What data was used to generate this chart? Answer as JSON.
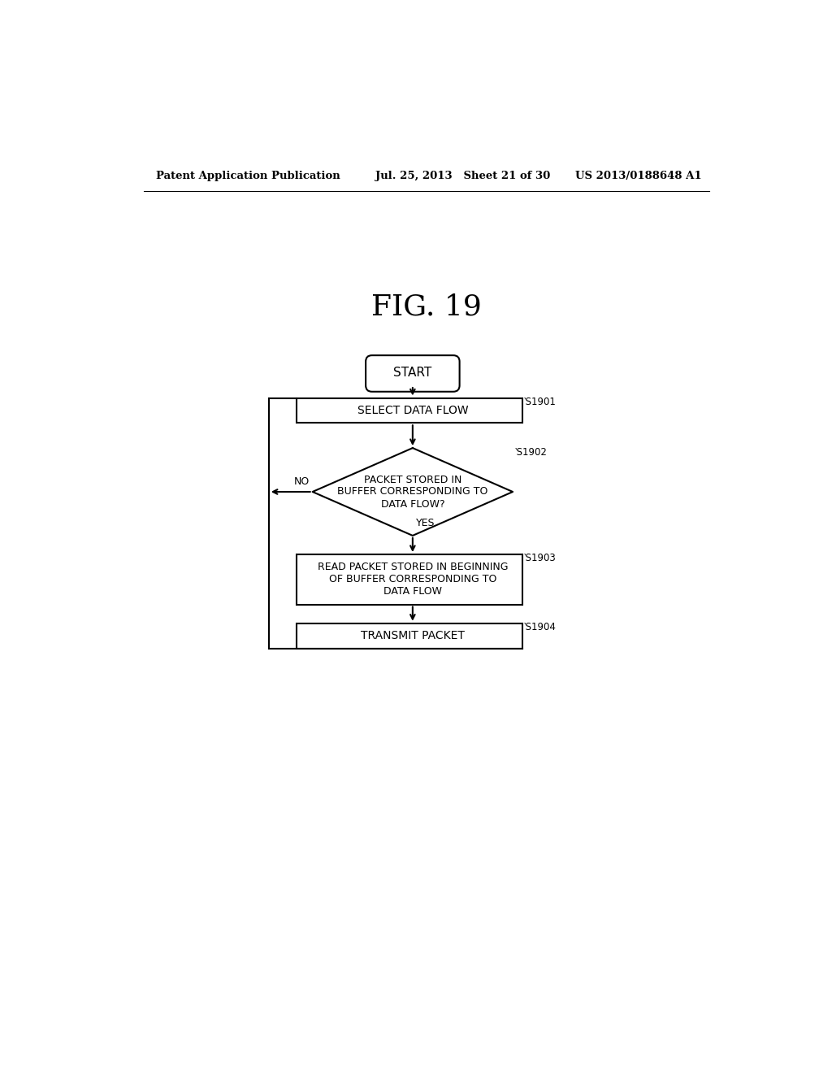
{
  "title": "FIG. 19",
  "header_left": "Patent Application Publication",
  "header_mid": "Jul. 25, 2013   Sheet 21 of 30",
  "header_right": "US 2013/0188648 A1",
  "background_color": "#ffffff",
  "text_color": "#000000",
  "start_label": "START",
  "s1901_label": "SELECT DATA FLOW",
  "s1901_step": "S1901",
  "s1902_label": "PACKET STORED IN\nBUFFER CORRESPONDING TO\nDATA FLOW?",
  "s1902_step": "S1902",
  "s1903_label": "READ PACKET STORED IN BEGINNING\nOF BUFFER CORRESPONDING TO\nDATA FLOW",
  "s1903_step": "S1903",
  "s1904_label": "TRANSMIT PACKET",
  "s1904_step": "S1904",
  "yes_label": "YES",
  "no_label": "NO"
}
